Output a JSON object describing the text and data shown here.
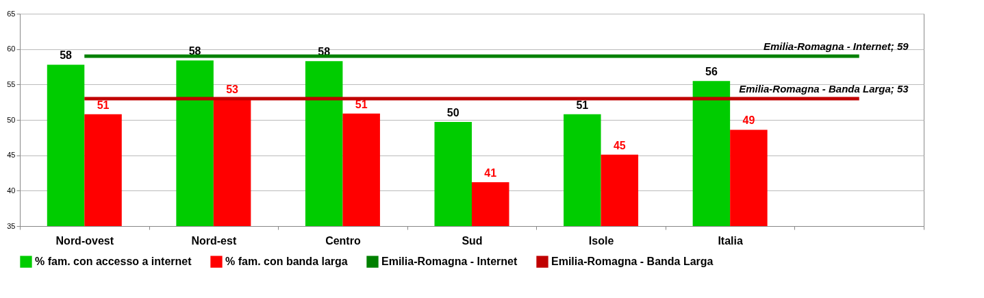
{
  "chart_data": {
    "type": "bar",
    "categories": [
      "Nord-ovest",
      "Nord-est",
      "Centro",
      "Sud",
      "Isole",
      "Italia",
      null
    ],
    "series": [
      {
        "name": "% fam. con accesso a internet",
        "color": "#00cc00",
        "values": [
          57.8,
          58.4,
          58.3,
          49.7,
          50.8,
          55.5,
          null
        ],
        "value_labels": [
          "58",
          "58",
          "58",
          "50",
          "51",
          "56",
          null
        ]
      },
      {
        "name": "% fam. con banda larga",
        "color": "#ff0000",
        "values": [
          50.8,
          53.0,
          50.9,
          41.2,
          45.1,
          48.6,
          null
        ],
        "value_labels": [
          "51",
          "53",
          "51",
          "41",
          "45",
          "49",
          null
        ]
      },
      {
        "name": "Emilia-Romagna - Internet",
        "type": "line",
        "color": "#008000",
        "values": [
          59,
          59,
          59,
          59,
          59,
          59,
          59
        ]
      },
      {
        "name": "Emilia-Romagna - Banda Larga",
        "type": "line",
        "color": "#c00000",
        "values": [
          53,
          53,
          53,
          53,
          53,
          53,
          53
        ]
      }
    ],
    "annotations": [
      {
        "text": "Emilia-Romagna - Internet; 59",
        "y": 59
      },
      {
        "text": "Emilia-Romagna - Banda Larga; 53",
        "y": 53
      }
    ],
    "ylim": [
      35,
      65
    ],
    "yticks": [
      35,
      40,
      45,
      50,
      55,
      60,
      65
    ],
    "grid": "y",
    "legend": "bottom"
  }
}
